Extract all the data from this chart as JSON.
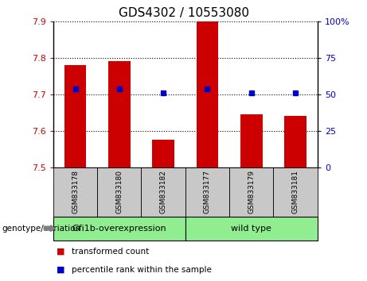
{
  "title": "GDS4302 / 10553080",
  "samples": [
    "GSM833178",
    "GSM833180",
    "GSM833182",
    "GSM833177",
    "GSM833179",
    "GSM833181"
  ],
  "red_values": [
    7.78,
    7.79,
    7.575,
    7.9,
    7.645,
    7.64
  ],
  "blue_values": [
    7.715,
    7.715,
    7.703,
    7.715,
    7.703,
    7.703
  ],
  "ylim_left": [
    7.5,
    7.9
  ],
  "ylim_right": [
    0,
    100
  ],
  "yticks_left": [
    7.5,
    7.6,
    7.7,
    7.8,
    7.9
  ],
  "yticks_right": [
    0,
    25,
    50,
    75,
    100
  ],
  "ytick_labels_right": [
    "0",
    "25",
    "50",
    "75",
    "100%"
  ],
  "groups": [
    {
      "label": "Gfi1b-overexpression",
      "n_samples": 3,
      "color": "#90EE90"
    },
    {
      "label": "wild type",
      "n_samples": 3,
      "color": "#90EE90"
    }
  ],
  "group_label_prefix": "genotype/variation",
  "legend_red": "transformed count",
  "legend_blue": "percentile rank within the sample",
  "bar_color": "#CC0000",
  "blue_color": "#0000CC",
  "bg_color": "#C8C8C8",
  "bar_width": 0.5,
  "base_value": 7.5
}
